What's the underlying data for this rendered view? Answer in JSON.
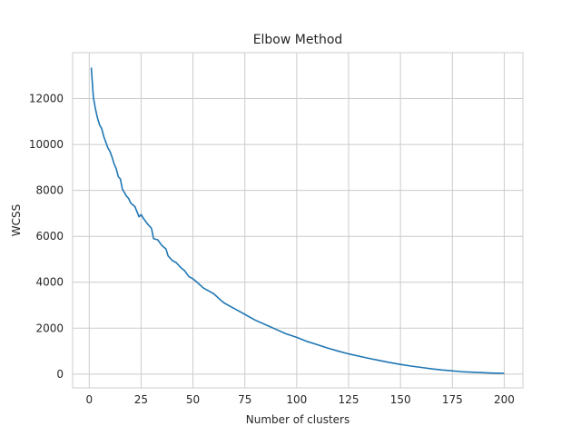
{
  "chart_data": {
    "type": "line",
    "title": "Elbow Method",
    "xlabel": "Number of clusters",
    "ylabel": "WCSS",
    "xlim": [
      -8,
      209
    ],
    "ylim": [
      -600,
      14000
    ],
    "xticks": [
      0,
      25,
      50,
      75,
      100,
      125,
      150,
      175,
      200
    ],
    "yticks": [
      0,
      2000,
      4000,
      6000,
      8000,
      10000,
      12000
    ],
    "grid": true,
    "series": [
      {
        "color": "#1f77b4",
        "x": [
          1,
          2,
          3,
          4,
          5,
          6,
          7,
          8,
          9,
          10,
          11,
          12,
          13,
          14,
          15,
          16,
          17,
          18,
          19,
          20,
          22,
          24,
          25,
          26,
          28,
          30,
          31,
          33,
          35,
          37,
          38,
          40,
          42,
          44,
          46,
          48,
          50,
          52,
          55,
          58,
          60,
          63,
          65,
          68,
          70,
          73,
          75,
          78,
          80,
          85,
          90,
          95,
          100,
          105,
          110,
          115,
          120,
          125,
          130,
          135,
          140,
          145,
          150,
          155,
          160,
          165,
          170,
          175,
          180,
          185,
          190,
          195,
          200
        ],
        "y": [
          13350,
          12050,
          11550,
          11150,
          10850,
          10700,
          10350,
          10100,
          9850,
          9700,
          9450,
          9150,
          8950,
          8600,
          8500,
          8050,
          7900,
          7750,
          7650,
          7450,
          7300,
          6850,
          6950,
          6800,
          6550,
          6350,
          5900,
          5850,
          5600,
          5450,
          5150,
          4950,
          4850,
          4650,
          4500,
          4250,
          4150,
          4000,
          3750,
          3600,
          3500,
          3250,
          3100,
          2950,
          2850,
          2700,
          2600,
          2450,
          2350,
          2150,
          1950,
          1750,
          1600,
          1420,
          1280,
          1130,
          1000,
          880,
          780,
          680,
          590,
          500,
          420,
          350,
          290,
          230,
          180,
          140,
          100,
          80,
          60,
          40,
          30
        ]
      }
    ]
  }
}
